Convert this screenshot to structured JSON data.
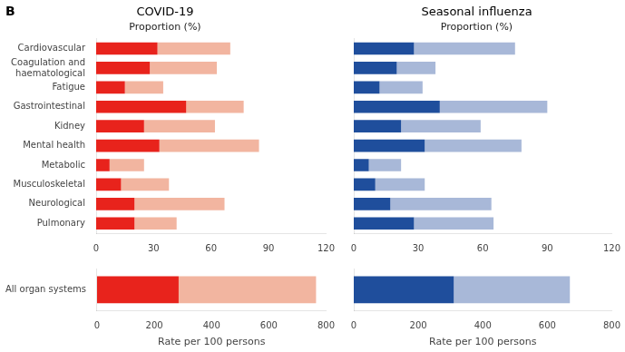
{
  "chart_data": [
    {
      "type": "bar",
      "orientation": "horizontal",
      "stacked": true,
      "grid": false,
      "title": "COVID-19",
      "subtitle": "Proportion (%)",
      "annotation": "B",
      "categories": [
        "Cardiovascular",
        "Coagulation and\nhaematological",
        "Fatigue",
        "Gastrointestinal",
        "Kidney",
        "Mental health",
        "Metabolic",
        "Musculoskeletal",
        "Neurological",
        "Pulmonary"
      ],
      "series": [
        {
          "color": "#e8231c",
          "values": [
            32,
            28,
            15,
            47,
            25,
            33,
            7,
            13,
            20,
            20
          ]
        },
        {
          "color": "#f2b5a0",
          "values": [
            38,
            35,
            20,
            30,
            37,
            52,
            18,
            25,
            47,
            22
          ]
        }
      ],
      "xlim": [
        0,
        120
      ],
      "xticks": [
        0,
        30,
        60,
        90,
        120
      ]
    },
    {
      "type": "bar",
      "orientation": "horizontal",
      "stacked": true,
      "grid": false,
      "title": "Seasonal influenza",
      "subtitle": "Proportion (%)",
      "categories": [
        null,
        null,
        null,
        null,
        null,
        null,
        null,
        null,
        null,
        null
      ],
      "series": [
        {
          "color": "#1f4e9c",
          "values": [
            28,
            20,
            12,
            40,
            22,
            33,
            7,
            10,
            17,
            28
          ]
        },
        {
          "color": "#a8b8d8",
          "values": [
            47,
            18,
            20,
            50,
            37,
            45,
            15,
            23,
            47,
            37
          ]
        }
      ],
      "xlim": [
        0,
        120
      ],
      "xticks": [
        0,
        30,
        60,
        90,
        120
      ]
    },
    {
      "type": "bar",
      "orientation": "horizontal",
      "stacked": true,
      "grid": false,
      "xlabel": "Rate per 100 persons",
      "categories": [
        "All organ systems"
      ],
      "series": [
        {
          "color": "#e8231c",
          "values": [
            285
          ]
        },
        {
          "color": "#f2b5a0",
          "values": [
            480
          ]
        }
      ],
      "xlim": [
        0,
        800
      ],
      "xticks": [
        0,
        200,
        400,
        600,
        800
      ]
    },
    {
      "type": "bar",
      "orientation": "horizontal",
      "stacked": true,
      "grid": false,
      "xlabel": "Rate per 100 persons",
      "categories": [
        null
      ],
      "series": [
        {
          "color": "#1f4e9c",
          "values": [
            310
          ]
        },
        {
          "color": "#a8b8d8",
          "values": [
            360
          ]
        }
      ],
      "xlim": [
        0,
        800
      ],
      "xticks": [
        0,
        200,
        400,
        600,
        800
      ]
    }
  ]
}
